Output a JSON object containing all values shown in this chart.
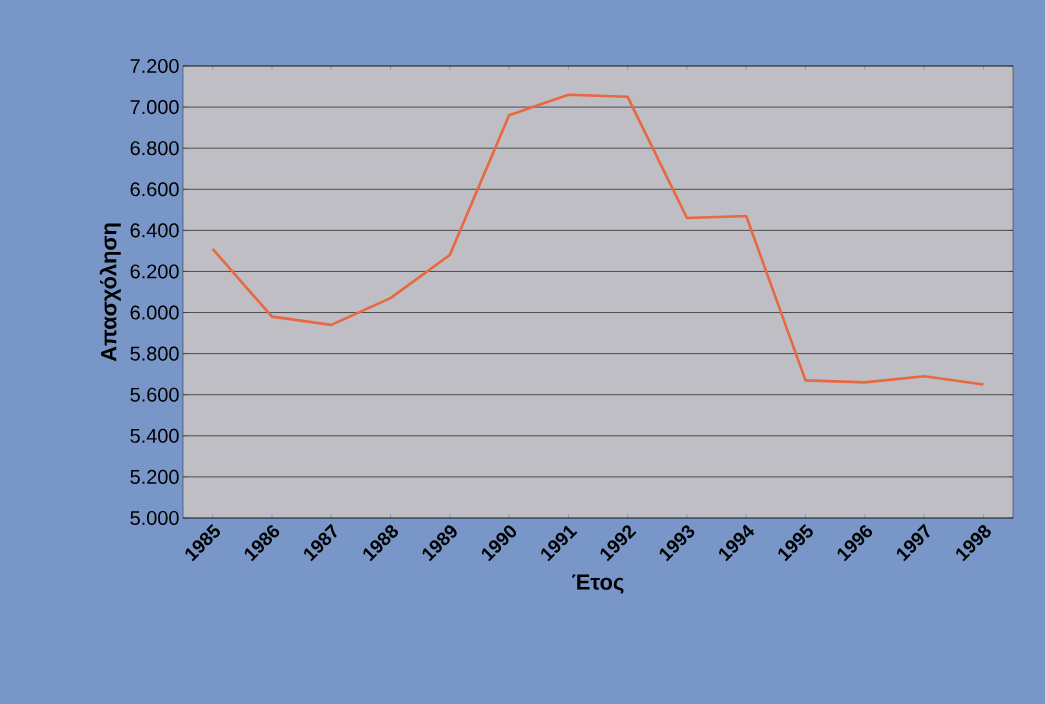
{
  "chart_data": {
    "type": "line",
    "xlabel": "Έτος",
    "ylabel": "Απασχόληση",
    "categories": [
      "1985",
      "1986",
      "1987",
      "1988",
      "1989",
      "1990",
      "1991",
      "1992",
      "1993",
      "1994",
      "1995",
      "1996",
      "1997",
      "1998"
    ],
    "series": [
      {
        "color": "#e8683f",
        "values": [
          6310,
          5980,
          5940,
          6070,
          6280,
          6960,
          7060,
          7050,
          6460,
          6470,
          5670,
          5660,
          5690,
          5650
        ]
      }
    ],
    "ylim": [
      5000,
      7200
    ],
    "yticks": [
      {
        "value": 5000,
        "label": "5.000"
      },
      {
        "value": 5200,
        "label": "5.200"
      },
      {
        "value": 5400,
        "label": "5.400"
      },
      {
        "value": 5600,
        "label": "5.600"
      },
      {
        "value": 5800,
        "label": "5.800"
      },
      {
        "value": 6000,
        "label": "6.000"
      },
      {
        "value": 6200,
        "label": "6.200"
      },
      {
        "value": 6400,
        "label": "6.400"
      },
      {
        "value": 6600,
        "label": "6.600"
      },
      {
        "value": 6800,
        "label": "6.800"
      },
      {
        "value": 7000,
        "label": "7.000"
      },
      {
        "value": 7200,
        "label": "7.200"
      }
    ],
    "grid": "y",
    "marker": "none",
    "line_style": "solid"
  }
}
